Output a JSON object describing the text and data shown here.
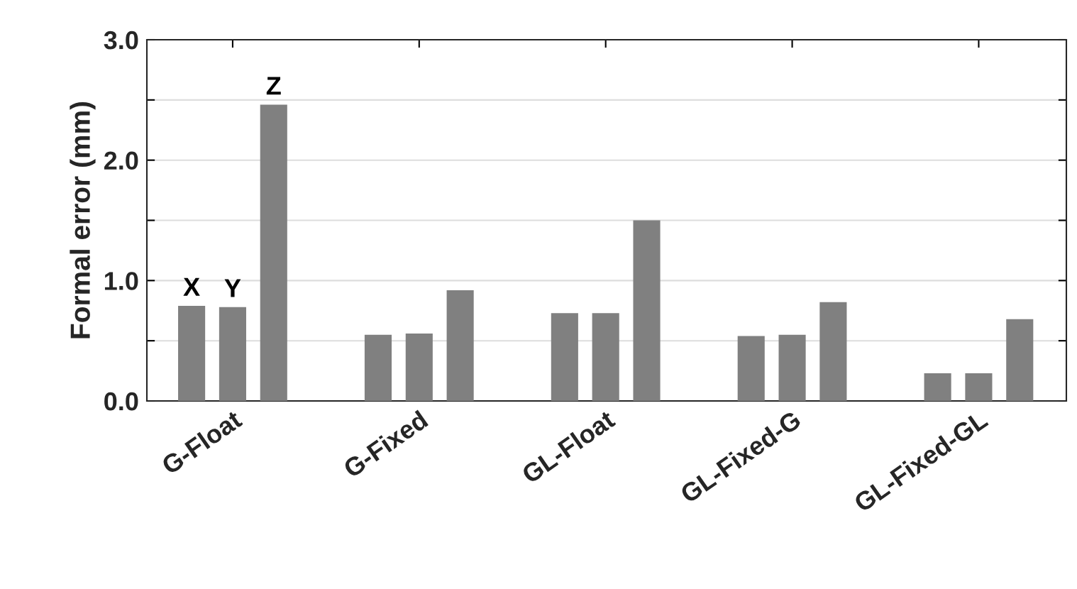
{
  "chart_data": {
    "type": "bar",
    "ylabel": "Formal error (mm)",
    "categories": [
      "G-Float",
      "G-Fixed",
      "GL-Float",
      "GL-Fixed-G",
      "GL-Fixed-GL"
    ],
    "series": [
      {
        "name": "X",
        "color": "#808080",
        "values": [
          0.79,
          0.55,
          0.73,
          0.54,
          0.23
        ]
      },
      {
        "name": "Y",
        "color": "#808080",
        "values": [
          0.78,
          0.56,
          0.73,
          0.55,
          0.23
        ]
      },
      {
        "name": "Z",
        "color": "#808080",
        "values": [
          2.46,
          0.92,
          1.5,
          0.82,
          0.68
        ]
      }
    ],
    "ylim": [
      0,
      3
    ],
    "yticks": [
      {
        "value": 0,
        "label": "0.0"
      },
      {
        "value": 0.5,
        "label": null
      },
      {
        "value": 1,
        "label": "1.0"
      },
      {
        "value": 1.5,
        "label": null
      },
      {
        "value": 2,
        "label": "2.0"
      },
      {
        "value": 2.5,
        "label": null
      },
      {
        "value": 3,
        "label": "3.0"
      }
    ],
    "grid": "y",
    "legend": false
  }
}
